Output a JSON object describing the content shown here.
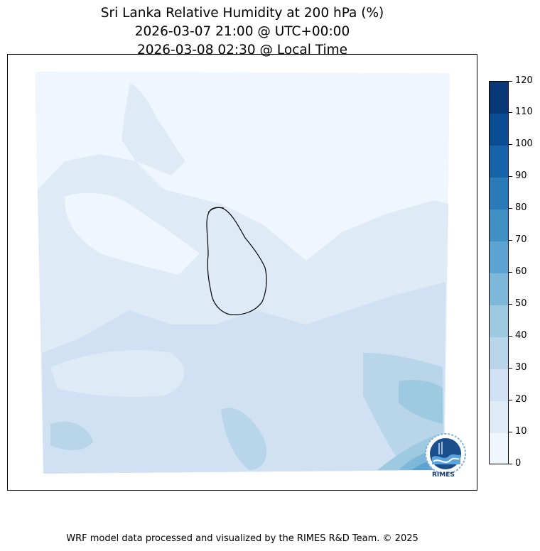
{
  "header": {
    "title_line1": "Sri Lanka Relative Humidity at 200 hPa (%)",
    "title_line2": "2026-03-07 21:00 @ UTC+00:00",
    "title_line3": "2026-03-08 02:30 @ Local Time"
  },
  "map": {
    "region": "Sri Lanka",
    "variable": "Relative Humidity at 200 hPa",
    "units": "%"
  },
  "colorbar": {
    "min": 0,
    "max": 120,
    "step": 10,
    "tick_labels": [
      "0",
      "10",
      "20",
      "30",
      "40",
      "50",
      "60",
      "70",
      "80",
      "90",
      "100",
      "110",
      "120"
    ],
    "colors": [
      "#f0f6fd",
      "#deebf7",
      "#cfe1f2",
      "#b8d5ea",
      "#9ecae1",
      "#7db8da",
      "#5ba3d0",
      "#4090c5",
      "#2a79b8",
      "#1764ab",
      "#0b4d94",
      "#083877"
    ]
  },
  "logo": {
    "text": "RIMES"
  },
  "footer": {
    "credit": "WRF model data processed and visualized by the RIMES R&D Team. © 2025"
  }
}
